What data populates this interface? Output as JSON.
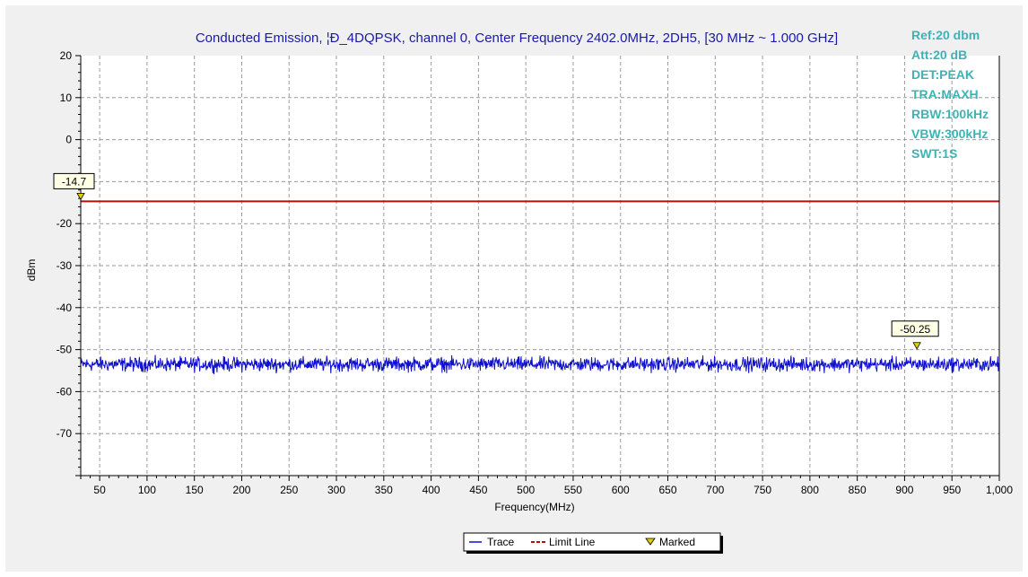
{
  "chart_data": {
    "type": "line",
    "title": "Conducted Emission, ¦Ð_4DQPSK, channel 0, Center Frequency 2402.0MHz, 2DH5, [30 MHz ~ 1.000 GHz]",
    "xlabel": "Frequency(MHz)",
    "ylabel": "dBm",
    "xlim": [
      30,
      1000
    ],
    "ylim": [
      -80,
      20
    ],
    "x_ticks": [
      50,
      100,
      150,
      200,
      250,
      300,
      350,
      400,
      450,
      500,
      550,
      600,
      650,
      700,
      750,
      800,
      850,
      900,
      950,
      1000
    ],
    "x_tick_labels": [
      "50",
      "100",
      "150",
      "200",
      "250",
      "300",
      "350",
      "400",
      "450",
      "500",
      "550",
      "600",
      "650",
      "700",
      "750",
      "800",
      "850",
      "900",
      "950",
      "1,000"
    ],
    "y_ticks": [
      20,
      10,
      0,
      -10,
      -20,
      -30,
      -40,
      -50,
      -60,
      -70
    ],
    "y_tick_labels": [
      "20",
      "10",
      "0",
      "-10",
      "-20",
      "-30",
      "-40",
      "-50",
      "-60",
      "-70"
    ],
    "grid": true,
    "series": [
      {
        "name": "Trace",
        "color": "#1010d0",
        "style": "solid",
        "baseline": -54,
        "noise_range": [
          -56,
          -51
        ]
      },
      {
        "name": "Limit Line",
        "color": "#b01010",
        "style": "dashed",
        "x": [
          30,
          1000
        ],
        "values": [
          -14.7,
          -14.7
        ]
      }
    ],
    "markers": [
      {
        "name": "Marked",
        "x": 30,
        "y": -14.7,
        "label": "-14.7"
      },
      {
        "name": "Marked",
        "x": 913,
        "y": -50.25,
        "label": "-50.25"
      }
    ],
    "info_lines": [
      "Ref:20 dbm",
      "Att:20 dB",
      "DET:PEAK",
      "TRA:MAXH",
      "RBW:100kHz",
      "VBW:300kHz",
      "SWT:1S"
    ],
    "legend": {
      "position": "bottom-center",
      "items": [
        {
          "label": "Trace",
          "symbol": "line",
          "color": "#1010d0"
        },
        {
          "label": "Limit Line",
          "symbol": "dash",
          "color": "#b01010"
        },
        {
          "label": "Marked",
          "symbol": "triangle",
          "color": "#e0d000"
        }
      ]
    }
  }
}
